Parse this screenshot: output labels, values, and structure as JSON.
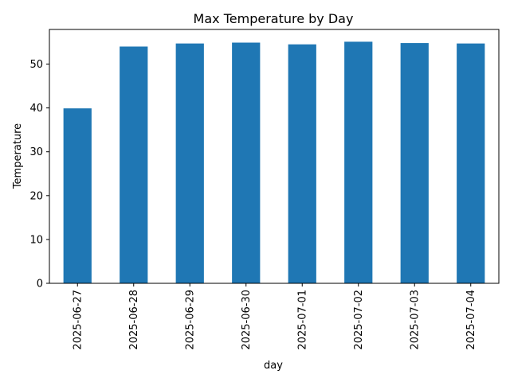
{
  "chart_data": {
    "type": "bar",
    "title": "Max Temperature by Day",
    "xlabel": "day",
    "ylabel": "Temperature",
    "categories": [
      "2025-06-27",
      "2025-06-28",
      "2025-06-29",
      "2025-06-30",
      "2025-07-01",
      "2025-07-02",
      "2025-07-03",
      "2025-07-04"
    ],
    "values": [
      39.9,
      54.0,
      54.7,
      54.9,
      54.5,
      55.1,
      54.8,
      54.7
    ],
    "ylim": [
      0,
      57.9
    ],
    "yticks": [
      0,
      10,
      20,
      30,
      40,
      50
    ],
    "bar_color": "#1f77b4",
    "grid": false,
    "legend": false
  }
}
